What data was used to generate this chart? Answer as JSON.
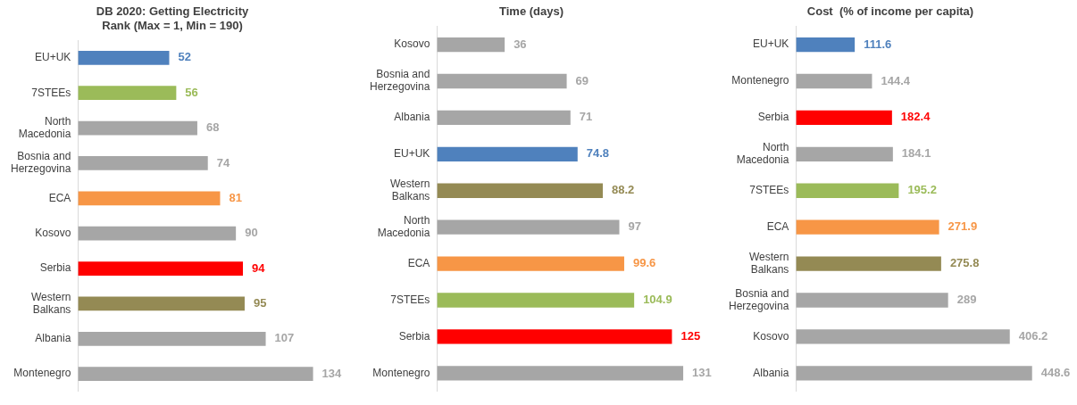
{
  "chart_data": [
    {
      "type": "bar",
      "orientation": "horizontal",
      "title": "DB 2020: Getting Electricity",
      "subtitle": "Rank (Max = 1, Min = 190)",
      "categories": [
        "EU+UK",
        "7STEEs",
        "North Macedonia",
        "Bosnia and Herzegovina",
        "ECA",
        "Kosovo",
        "Serbia",
        "Western Balkans",
        "Albania",
        "Montenegro"
      ],
      "values": [
        52,
        56,
        68,
        74,
        81,
        90,
        94,
        95,
        107,
        134
      ],
      "colors": [
        "#4f81bd",
        "#9bbb59",
        "#a6a6a6",
        "#a6a6a6",
        "#f79646",
        "#a6a6a6",
        "#ff0000",
        "#948a54",
        "#a6a6a6",
        "#a6a6a6"
      ],
      "data_labels": true,
      "tick_labels": "y",
      "grid": false
    },
    {
      "type": "bar",
      "orientation": "horizontal",
      "title": "Time (days)",
      "categories": [
        "Kosovo",
        "Bosnia and Herzegovina",
        "Albania",
        "EU+UK",
        "Western Balkans",
        "North Macedonia",
        "ECA",
        "7STEEs",
        "Serbia",
        "Montenegro"
      ],
      "values": [
        36,
        69,
        71,
        74.8,
        88.2,
        97,
        99.6,
        104.9,
        125,
        131
      ],
      "colors": [
        "#a6a6a6",
        "#a6a6a6",
        "#a6a6a6",
        "#4f81bd",
        "#948a54",
        "#a6a6a6",
        "#f79646",
        "#9bbb59",
        "#ff0000",
        "#a6a6a6"
      ],
      "data_labels": true,
      "tick_labels": "y",
      "grid": false
    },
    {
      "type": "bar",
      "orientation": "horizontal",
      "title": "Cost  (% of income per capita)",
      "categories": [
        "EU+UK",
        "Montenegro",
        "Serbia",
        "North Macedonia",
        "7STEEs",
        "ECA",
        "Western Balkans",
        "Bosnia and Herzegovina",
        "Kosovo",
        "Albania"
      ],
      "values": [
        111.6,
        144.4,
        182.4,
        184.1,
        195.2,
        271.9,
        275.8,
        289,
        406.2,
        448.6
      ],
      "colors": [
        "#4f81bd",
        "#a6a6a6",
        "#ff0000",
        "#a6a6a6",
        "#9bbb59",
        "#f79646",
        "#948a54",
        "#a6a6a6",
        "#a6a6a6",
        "#a6a6a6"
      ],
      "data_labels": true,
      "tick_labels": "y",
      "grid": false
    }
  ]
}
